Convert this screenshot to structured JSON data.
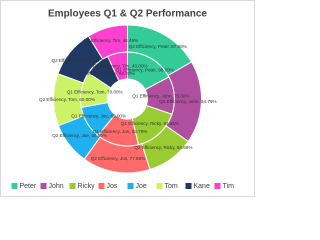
{
  "chart_data": {
    "type": "doughnut",
    "title": "Employees Q1 & Q2 Performance",
    "categories": [
      "Peter",
      "John",
      "Ricky",
      "Jos",
      "Joe",
      "Tom",
      "Kane",
      "Tim"
    ],
    "colors": [
      "#33cc99",
      "#b04fa0",
      "#99cc33",
      "#ff6b6b",
      "#1fb0ef",
      "#ccf266",
      "#1f3864",
      "#ff3fcf"
    ],
    "series": [
      {
        "name": "Q1 Efficiency",
        "values": [
          98.99,
          75.0,
          91.66,
          83.79,
          65.0,
          70.0,
          50.0,
          40.0
        ],
        "value_labels": [
          "Q1 Efficiency, Peter, 98.99%",
          "Q1 Efficiency, John, 75.00%",
          "Q1 Efficiency, Ricky, 91.66%",
          "Q1 Efficiency, Jos, 83.79%",
          "Q1 Efficiency, Joe, 65.00%",
          "Q1 Efficiency, Tom, 70.00%",
          "Q1 Efficiency, Kane, 50.00%",
          "Q1 Efficiency, Tim, 40.00%"
        ]
      },
      {
        "name": "Q2 Efficiency",
        "values": [
          87.58,
          94.79,
          54.66,
          77.86,
          48.5,
          60.0,
          55.72,
          46.46
        ],
        "value_labels": [
          "Q2 Efficiency, Peter, 87.58%",
          "Q2 Efficiency, John, 94.79%",
          "Q2 Efficiency, Ricky, 54.66%",
          "Q2 Efficiency, Jos, 77.86%",
          "Q2 Efficiency, Joe, 48.50%",
          "Q2 Efficiency, Tom, 60.00%",
          "Q2 Efficiency, Kane, 55.72%",
          "Q2 Efficiency, Tim, 46.46%"
        ]
      }
    ]
  }
}
